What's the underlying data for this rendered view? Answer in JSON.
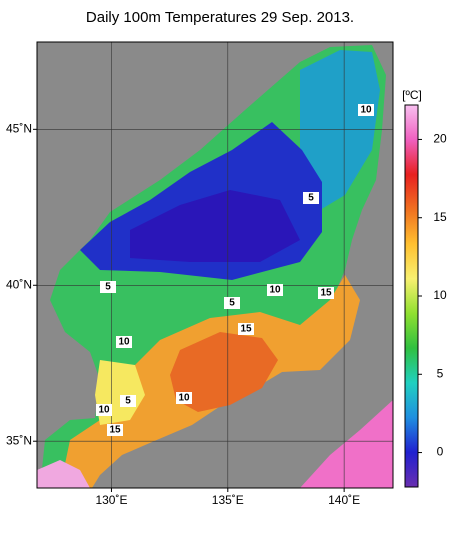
{
  "title": "Daily 100m Temperatures 29 Sep. 2013.",
  "map": {
    "lon_lim": [
      126.8,
      142.1
    ],
    "lat_lim": [
      33.5,
      47.8
    ],
    "lon_ticks": [
      {
        "value": 130,
        "label": "130˚E"
      },
      {
        "value": 135,
        "label": "135˚E"
      },
      {
        "value": 140,
        "label": "140˚E"
      }
    ],
    "lat_ticks": [
      {
        "value": 35,
        "label": "35˚N"
      },
      {
        "value": 40,
        "label": "40˚N"
      },
      {
        "value": 45,
        "label": "45˚N"
      }
    ],
    "contour_labels": [
      10,
      5,
      5,
      10,
      15,
      5,
      15,
      10,
      10,
      5,
      10,
      15
    ]
  },
  "colorbar": {
    "label": "[ºC]",
    "lim": [
      -2.2,
      22.2
    ],
    "ticks": [
      0,
      5,
      10,
      15,
      20
    ],
    "colors": [
      "#6a2fb0",
      "#2020d0",
      "#1f8fe0",
      "#20d0c0",
      "#30c040",
      "#90e030",
      "#f8f070",
      "#ffc030",
      "#f07020",
      "#e82020",
      "#f060c0",
      "#f8c0f0"
    ]
  }
}
